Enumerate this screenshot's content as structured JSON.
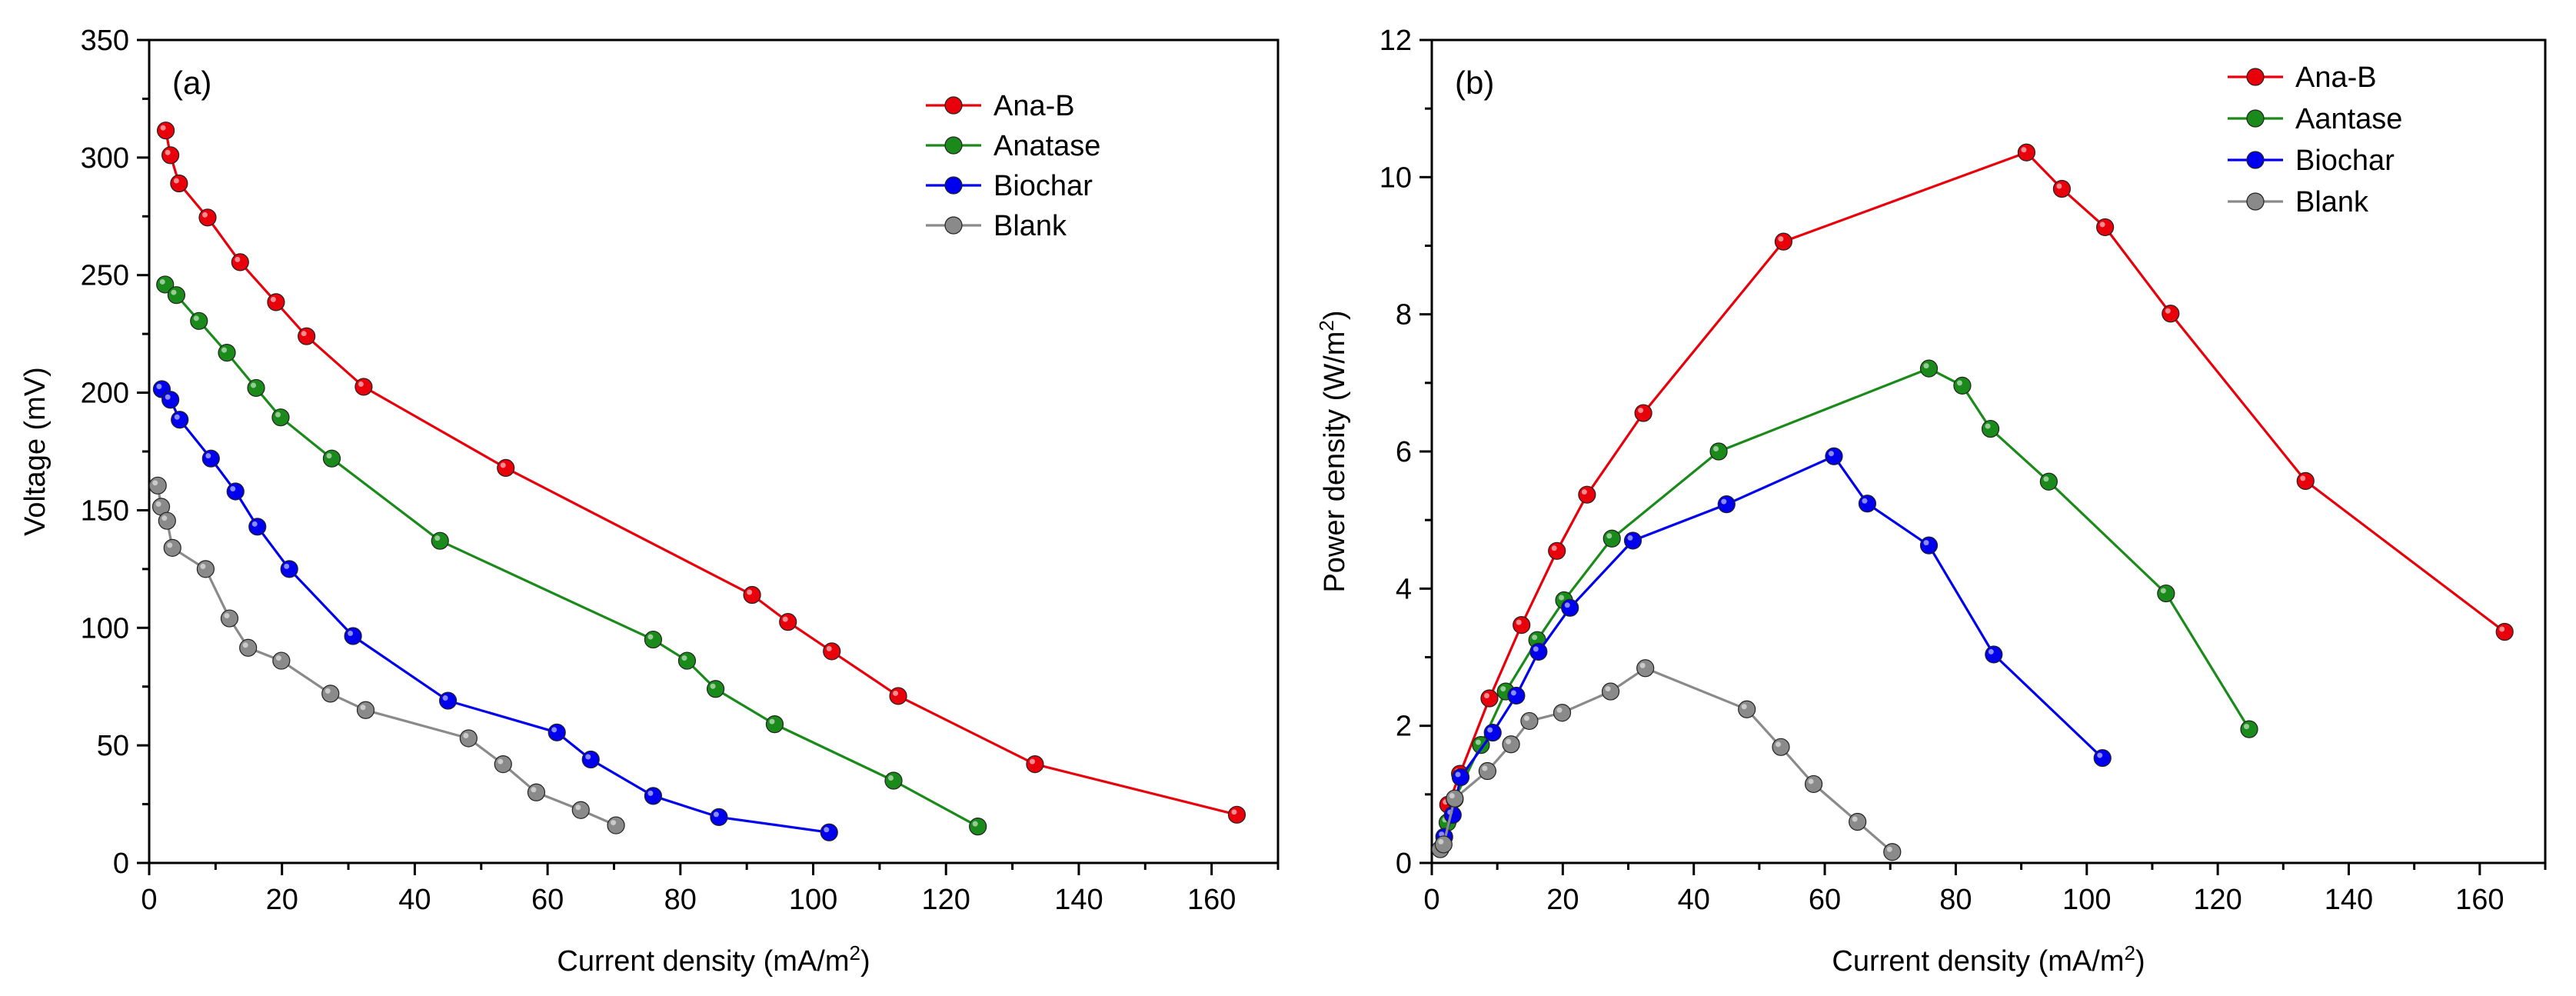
{
  "chart_data": [
    {
      "type": "line",
      "panel_label": "(a)",
      "xlabel": "Current density (mA/m",
      "xlabel_sup": "2",
      "xlabel_end": ")",
      "ylabel": "Voltage (mV)",
      "xlim": [
        0,
        170
      ],
      "ylim": [
        0,
        350
      ],
      "xticks": [
        0,
        20,
        40,
        60,
        80,
        100,
        120,
        140,
        160
      ],
      "yticks": [
        0,
        50,
        100,
        150,
        200,
        250,
        300,
        350
      ],
      "legend_position": "top-right",
      "series": [
        {
          "name": "Ana-B",
          "color": "#e8000b",
          "x": [
            2.5,
            3.2,
            4.5,
            8.8,
            13.7,
            19.1,
            23.7,
            32.3,
            53.7,
            90.8,
            96.2,
            102.8,
            112.8,
            133.4,
            163.8
          ],
          "y": [
            311.5,
            301,
            289,
            274.5,
            255.5,
            238.5,
            224,
            202.5,
            168,
            114,
            102.5,
            90,
            71,
            42,
            20.5
          ]
        },
        {
          "name": "Anatase",
          "color": "#1a8a1a",
          "x": [
            2.4,
            4.1,
            7.5,
            11.7,
            16.1,
            19.8,
            27.5,
            43.8,
            75.9,
            81.0,
            85.3,
            94.2,
            112.1,
            124.8
          ],
          "y": [
            246,
            241.5,
            230.5,
            217,
            202,
            189.5,
            172,
            137,
            95,
            86,
            74,
            59,
            35,
            15.5
          ]
        },
        {
          "name": "Biochar",
          "color": "#0000ee",
          "x": [
            1.9,
            3.2,
            4.6,
            9.3,
            13.0,
            16.3,
            21.1,
            30.7,
            45.0,
            61.4,
            66.5,
            75.9,
            85.8,
            102.4
          ],
          "y": [
            201.5,
            197,
            188.5,
            172,
            158,
            143,
            125,
            96.5,
            69,
            55.5,
            44,
            28.5,
            19.5,
            13
          ]
        },
        {
          "name": "Blank",
          "color": "#8a8a8a",
          "x": [
            1.3,
            1.8,
            2.7,
            3.5,
            8.5,
            12.1,
            14.9,
            19.9,
            27.3,
            32.6,
            48.1,
            53.3,
            58.3,
            65.0,
            70.3
          ],
          "y": [
            160.5,
            151.5,
            145.5,
            134,
            125,
            104,
            91.5,
            86,
            72,
            65,
            53,
            42,
            30,
            22.5,
            16
          ]
        }
      ]
    },
    {
      "type": "line",
      "panel_label": "(b)",
      "xlabel": "Current density (mA/m",
      "xlabel_sup": "2",
      "xlabel_end": ")",
      "ylabel": "Power density (W/m",
      "ylabel_sup": "2",
      "ylabel_end": ")",
      "xlim": [
        0,
        170
      ],
      "ylim": [
        0,
        12
      ],
      "xticks": [
        0,
        20,
        40,
        60,
        80,
        100,
        120,
        140,
        160
      ],
      "yticks": [
        0,
        2,
        4,
        6,
        8,
        10,
        12
      ],
      "legend_position": "top-right",
      "series": [
        {
          "name": "Ana-B",
          "color": "#e8000b",
          "x": [
            2.5,
            4.3,
            8.8,
            13.7,
            19.1,
            23.7,
            32.3,
            53.7,
            90.8,
            96.2,
            102.8,
            112.8,
            133.4,
            163.8
          ],
          "y": [
            0.85,
            1.3,
            2.4,
            3.47,
            4.55,
            5.37,
            6.56,
            9.06,
            10.36,
            9.83,
            9.27,
            8.01,
            5.57,
            3.37
          ]
        },
        {
          "name": "Aantase",
          "color": "#1a8a1a",
          "x": [
            2.4,
            3.5,
            7.5,
            11.3,
            16.1,
            20.2,
            27.5,
            43.8,
            75.9,
            81.0,
            85.3,
            94.2,
            112.1,
            124.8
          ],
          "y": [
            0.59,
            0.93,
            1.72,
            2.5,
            3.25,
            3.83,
            4.73,
            6.0,
            7.21,
            6.96,
            6.33,
            5.56,
            3.93,
            1.95
          ]
        },
        {
          "name": "Biochar",
          "color": "#0000ee",
          "x": [
            1.9,
            3.2,
            4.4,
            9.3,
            12.9,
            16.3,
            21.1,
            30.7,
            45.0,
            61.4,
            66.5,
            75.9,
            85.8,
            102.4
          ],
          "y": [
            0.38,
            0.7,
            1.25,
            1.9,
            2.44,
            3.08,
            3.72,
            4.7,
            5.23,
            5.93,
            5.24,
            4.63,
            3.04,
            1.53
          ]
        },
        {
          "name": "Blank",
          "color": "#8a8a8a",
          "x": [
            1.3,
            1.8,
            3.5,
            8.5,
            12.1,
            14.9,
            19.9,
            27.3,
            32.6,
            48.1,
            53.3,
            58.3,
            65.0,
            70.3
          ],
          "y": [
            0.2,
            0.27,
            0.94,
            1.34,
            1.73,
            2.07,
            2.19,
            2.5,
            2.84,
            2.24,
            1.69,
            1.15,
            0.6,
            0.16
          ]
        }
      ]
    }
  ]
}
